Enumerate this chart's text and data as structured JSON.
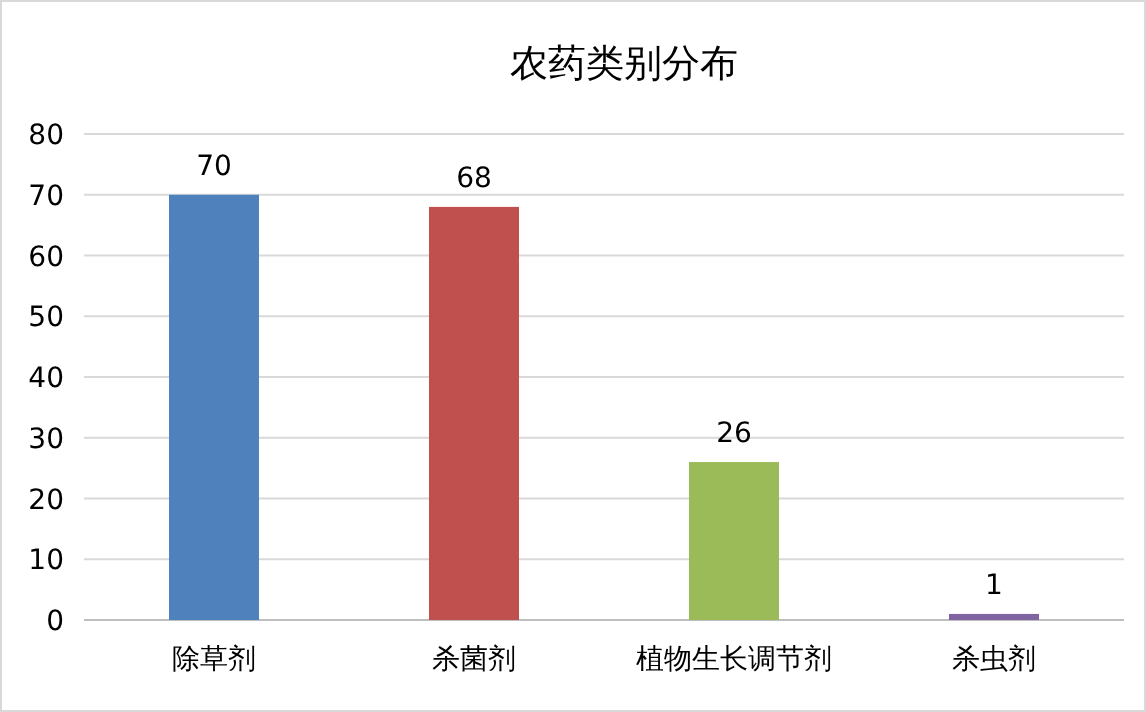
{
  "chart_data": {
    "type": "bar",
    "title": "农药类别分布",
    "categories": [
      "除草剂",
      "杀菌剂",
      "植物生长调节剂",
      "杀虫剂"
    ],
    "values": [
      70,
      68,
      26,
      1
    ],
    "colors": [
      "#4f81bd",
      "#c0504d",
      "#9bbb59",
      "#8064a2"
    ],
    "ylim": [
      0,
      80
    ],
    "yticks": [
      0,
      10,
      20,
      30,
      40,
      50,
      60,
      70,
      80
    ],
    "grid": "y",
    "data_labels": true
  }
}
